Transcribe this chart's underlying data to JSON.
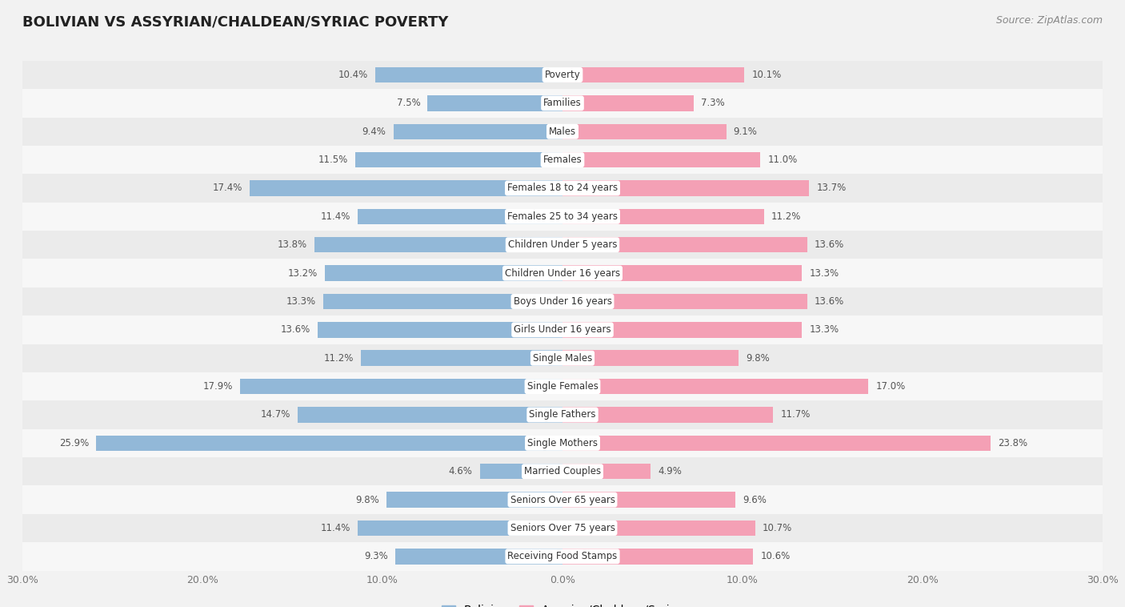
{
  "title": "BOLIVIAN VS ASSYRIAN/CHALDEAN/SYRIAC POVERTY",
  "source": "Source: ZipAtlas.com",
  "categories": [
    "Poverty",
    "Families",
    "Males",
    "Females",
    "Females 18 to 24 years",
    "Females 25 to 34 years",
    "Children Under 5 years",
    "Children Under 16 years",
    "Boys Under 16 years",
    "Girls Under 16 years",
    "Single Males",
    "Single Females",
    "Single Fathers",
    "Single Mothers",
    "Married Couples",
    "Seniors Over 65 years",
    "Seniors Over 75 years",
    "Receiving Food Stamps"
  ],
  "bolivian": [
    10.4,
    7.5,
    9.4,
    11.5,
    17.4,
    11.4,
    13.8,
    13.2,
    13.3,
    13.6,
    11.2,
    17.9,
    14.7,
    25.9,
    4.6,
    9.8,
    11.4,
    9.3
  ],
  "assyrian": [
    10.1,
    7.3,
    9.1,
    11.0,
    13.7,
    11.2,
    13.6,
    13.3,
    13.6,
    13.3,
    9.8,
    17.0,
    11.7,
    23.8,
    4.9,
    9.6,
    10.7,
    10.6
  ],
  "bolivian_color": "#92b8d8",
  "assyrian_color": "#f4a0b5",
  "bar_height": 0.55,
  "xlim": 30,
  "bg_color": "#f2f2f2",
  "row_bg_even": "#ebebeb",
  "row_bg_odd": "#f7f7f7",
  "legend_bolivian": "Bolivian",
  "legend_assyrian": "Assyrian/Chaldean/Syriac",
  "title_fontsize": 13,
  "source_fontsize": 9,
  "label_fontsize": 8.5,
  "category_fontsize": 8.5,
  "tick_fontsize": 9
}
